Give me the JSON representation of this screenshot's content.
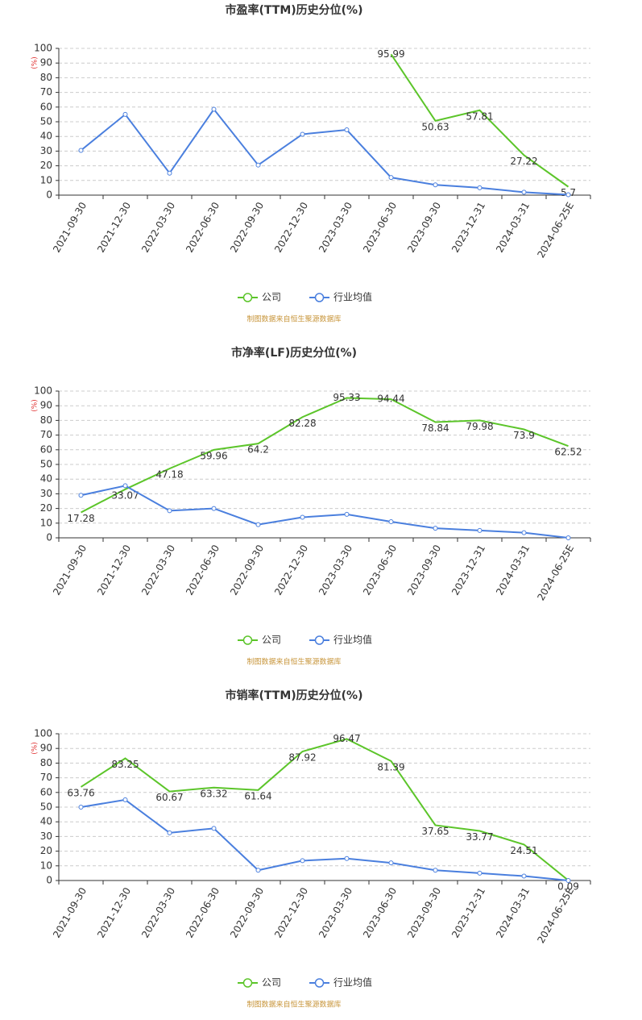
{
  "chart_data": [
    {
      "type": "line",
      "title": "市盈率(TTM)历史分位(%)",
      "y_label": "(%)",
      "categories": [
        "2021-09-30",
        "2021-12-30",
        "2022-03-30",
        "2022-06-30",
        "2022-09-30",
        "2022-12-30",
        "2023-03-30",
        "2023-06-30",
        "2023-09-30",
        "2023-12-31",
        "2024-03-31",
        "2024-06-25E"
      ],
      "series": [
        {
          "name": "公司",
          "color": "#5cc52a",
          "show_labels": true,
          "markers": false,
          "values": [
            null,
            null,
            null,
            null,
            null,
            null,
            null,
            95.99,
            50.63,
            57.81,
            27.22,
            5.7
          ]
        },
        {
          "name": "行业均值",
          "color": "#4a7fde",
          "show_labels": false,
          "markers": true,
          "values": [
            30.5,
            55,
            15,
            58.5,
            20.5,
            41.5,
            44.5,
            12,
            7,
            5,
            2,
            0.3
          ]
        }
      ],
      "ylim": [
        0,
        100
      ],
      "yticks": [
        0,
        10,
        20,
        30,
        40,
        50,
        60,
        70,
        80,
        90,
        100
      ],
      "grid": true,
      "legend": "bottom",
      "source": "制图数据来自恒生聚源数据库"
    },
    {
      "type": "line",
      "title": "市净率(LF)历史分位(%)",
      "y_label": "(%)",
      "categories": [
        "2021-09-30",
        "2021-12-30",
        "2022-03-30",
        "2022-06-30",
        "2022-09-30",
        "2022-12-30",
        "2023-03-30",
        "2023-06-30",
        "2023-09-30",
        "2023-12-31",
        "2024-03-31",
        "2024-06-25E"
      ],
      "series": [
        {
          "name": "公司",
          "color": "#5cc52a",
          "show_labels": true,
          "markers": false,
          "values": [
            17.28,
            33.07,
            47.18,
            59.96,
            64.2,
            82.28,
            95.33,
            94.44,
            78.84,
            79.98,
            73.9,
            62.52
          ]
        },
        {
          "name": "行业均值",
          "color": "#4a7fde",
          "show_labels": false,
          "markers": true,
          "values": [
            29,
            35.5,
            18.5,
            20,
            9,
            14,
            16,
            11,
            6.5,
            5,
            3.5,
            0
          ]
        }
      ],
      "ylim": [
        0,
        100
      ],
      "yticks": [
        0,
        10,
        20,
        30,
        40,
        50,
        60,
        70,
        80,
        90,
        100
      ],
      "grid": true,
      "legend": "bottom",
      "source": "制图数据来自恒生聚源数据库"
    },
    {
      "type": "line",
      "title": "市销率(TTM)历史分位(%)",
      "y_label": "(%)",
      "categories": [
        "2021-09-30",
        "2021-12-30",
        "2022-03-30",
        "2022-06-30",
        "2022-09-30",
        "2022-12-30",
        "2023-03-30",
        "2023-06-30",
        "2023-09-30",
        "2023-12-31",
        "2024-03-31",
        "2024-06-25E"
      ],
      "series": [
        {
          "name": "公司",
          "color": "#5cc52a",
          "show_labels": true,
          "markers": false,
          "values": [
            63.76,
            83.25,
            60.67,
            63.32,
            61.64,
            87.92,
            96.47,
            81.39,
            37.65,
            33.77,
            24.51,
            0.09
          ]
        },
        {
          "name": "行业均值",
          "color": "#4a7fde",
          "show_labels": false,
          "markers": true,
          "values": [
            50,
            55,
            32.5,
            35.5,
            7,
            13.5,
            15,
            12,
            7,
            5,
            3,
            0
          ]
        }
      ],
      "ylim": [
        0,
        100
      ],
      "yticks": [
        0,
        10,
        20,
        30,
        40,
        50,
        60,
        70,
        80,
        90,
        100
      ],
      "grid": true,
      "legend": "bottom",
      "source": "制图数据来自恒生聚源数据库"
    }
  ]
}
